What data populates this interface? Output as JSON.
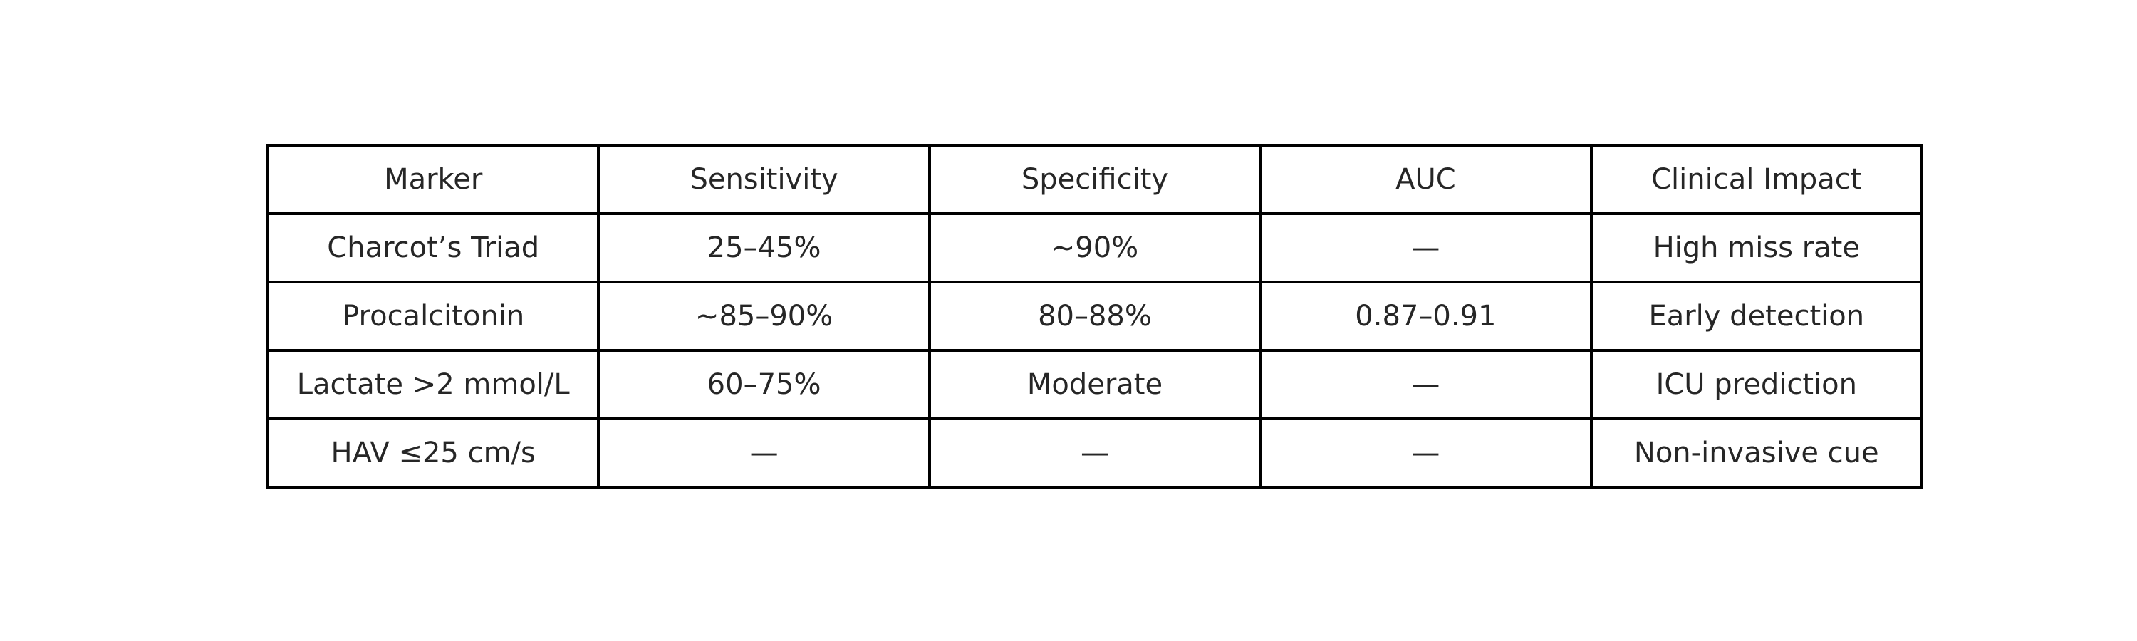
{
  "chart_data": {
    "type": "table",
    "columns": [
      "Marker",
      "Sensitivity",
      "Specificity",
      "AUC",
      "Clinical Impact"
    ],
    "rows": [
      [
        "Charcot’s Triad",
        "25–45%",
        "~90%",
        "—",
        "High miss rate"
      ],
      [
        "Procalcitonin",
        "~85–90%",
        "80–88%",
        "0.87–0.91",
        "Early detection"
      ],
      [
        "Lactate >2 mmol/L",
        "60–75%",
        "Moderate",
        "—",
        "ICU prediction"
      ],
      [
        "HAV ≤25 cm/s",
        "—",
        "—",
        "—",
        "Non-invasive cue"
      ]
    ]
  },
  "colors": {
    "border": "#000000",
    "text": "#262626",
    "background": "#ffffff"
  }
}
